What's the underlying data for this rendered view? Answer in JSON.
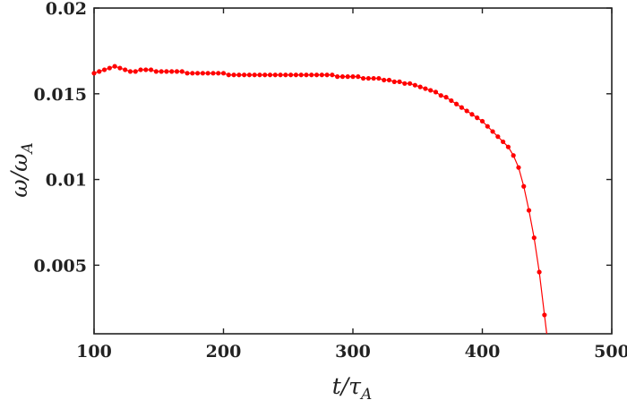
{
  "chart_data": {
    "type": "line",
    "title": "",
    "xlabel": "t/τ_A",
    "ylabel": "ω/ω_A",
    "xlim": [
      100,
      500
    ],
    "ylim": [
      0.001,
      0.02
    ],
    "xticks": [
      100,
      200,
      300,
      400,
      500
    ],
    "xtick_labels": [
      "100",
      "200",
      "300",
      "400",
      "500"
    ],
    "yticks": [
      0.005,
      0.01,
      0.015,
      0.02
    ],
    "ytick_labels": [
      "0.005",
      "0.01",
      "0.015",
      "0.02"
    ],
    "grid": false,
    "legend": "none",
    "series": [
      {
        "color": "#ff0000",
        "marker": "circle",
        "x": [
          100,
          104,
          108,
          112,
          116,
          120,
          124,
          128,
          132,
          136,
          140,
          144,
          148,
          152,
          156,
          160,
          164,
          168,
          172,
          176,
          180,
          184,
          188,
          192,
          196,
          200,
          204,
          208,
          212,
          216,
          220,
          224,
          228,
          232,
          236,
          240,
          244,
          248,
          252,
          256,
          260,
          264,
          268,
          272,
          276,
          280,
          284,
          288,
          292,
          296,
          300,
          304,
          308,
          312,
          316,
          320,
          324,
          328,
          332,
          336,
          340,
          344,
          348,
          352,
          356,
          360,
          364,
          368,
          372,
          376,
          380,
          384,
          388,
          392,
          396,
          400,
          404,
          408,
          412,
          416,
          420,
          424,
          428,
          432,
          436,
          440,
          444,
          448
        ],
        "y": [
          0.0162,
          0.0163,
          0.0164,
          0.0165,
          0.0166,
          0.0165,
          0.0164,
          0.0163,
          0.0163,
          0.0164,
          0.0164,
          0.0164,
          0.0163,
          0.0163,
          0.0163,
          0.0163,
          0.0163,
          0.0163,
          0.0162,
          0.0162,
          0.0162,
          0.0162,
          0.0162,
          0.0162,
          0.0162,
          0.0162,
          0.0161,
          0.0161,
          0.0161,
          0.0161,
          0.0161,
          0.0161,
          0.0161,
          0.0161,
          0.0161,
          0.0161,
          0.0161,
          0.0161,
          0.0161,
          0.0161,
          0.0161,
          0.0161,
          0.0161,
          0.0161,
          0.0161,
          0.0161,
          0.0161,
          0.016,
          0.016,
          0.016,
          0.016,
          0.016,
          0.0159,
          0.0159,
          0.0159,
          0.0159,
          0.0158,
          0.0158,
          0.0157,
          0.0157,
          0.0156,
          0.0156,
          0.0155,
          0.0154,
          0.0153,
          0.0152,
          0.0151,
          0.0149,
          0.0148,
          0.0146,
          0.0144,
          0.0142,
          0.014,
          0.0138,
          0.0136,
          0.0134,
          0.0131,
          0.0128,
          0.0125,
          0.0122,
          0.0119,
          0.0114,
          0.0107,
          0.0096,
          0.0082,
          0.0066,
          0.0046,
          0.0021
        ]
      }
    ]
  }
}
